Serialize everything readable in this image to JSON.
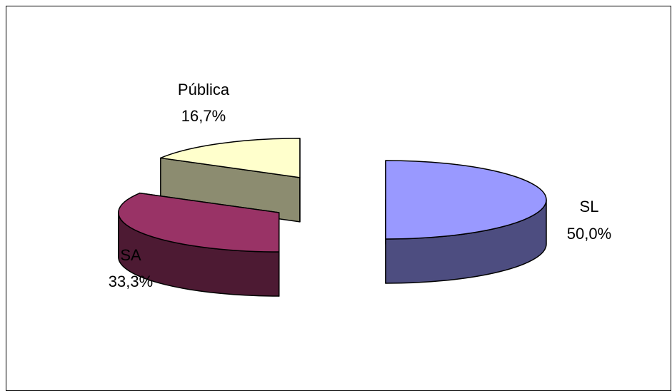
{
  "chart_data": {
    "type": "pie",
    "style": "3d-exploded",
    "title": "",
    "slices": [
      {
        "name": "SL",
        "value": 50.0,
        "percent_label": "50,0%",
        "color": "#9999FF"
      },
      {
        "name": "SA",
        "value": 33.3,
        "percent_label": "33,3%",
        "color": "#993366"
      },
      {
        "name": "Pública",
        "value": 16.7,
        "percent_label": "16,7%",
        "color": "#FFFFCC"
      }
    ],
    "legend": "none",
    "data_labels": "category-and-percent"
  }
}
